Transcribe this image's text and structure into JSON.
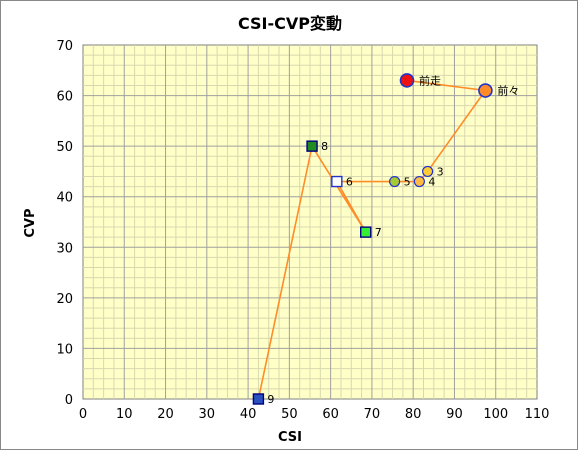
{
  "chart_data": {
    "type": "scatter",
    "title": "CSI-CVP変動",
    "xlabel": "CSI",
    "ylabel": "CVP",
    "xlim": [
      0,
      110
    ],
    "ylim": [
      0,
      70
    ],
    "x_ticks": [
      0,
      10,
      20,
      30,
      40,
      50,
      60,
      70,
      80,
      90,
      100,
      110
    ],
    "y_ticks": [
      0,
      10,
      20,
      30,
      40,
      50,
      60,
      70
    ],
    "grid": true,
    "legend": "none",
    "line_color": "#ff8c28",
    "plot_background": "#ffffc8",
    "points": [
      {
        "label": "9",
        "x": 42.5,
        "y": 0,
        "marker": "square",
        "fill": "#2a52be",
        "stroke": "#000080"
      },
      {
        "label": "8",
        "x": 55.5,
        "y": 50,
        "marker": "square",
        "fill": "#228b22",
        "stroke": "#000080"
      },
      {
        "label": "7",
        "x": 68.5,
        "y": 33,
        "marker": "square",
        "fill": "#33ee33",
        "stroke": "#000080"
      },
      {
        "label": "6",
        "x": 61.5,
        "y": 43,
        "marker": "square",
        "fill": "#ffffff",
        "stroke": "#2233cc"
      },
      {
        "label": "5",
        "x": 75.5,
        "y": 43,
        "marker": "circle",
        "fill": "#a6c832",
        "stroke": "#2233cc"
      },
      {
        "label": "4",
        "x": 81.5,
        "y": 43,
        "marker": "circle",
        "fill": "#ffbb44",
        "stroke": "#2233cc"
      },
      {
        "label": "3",
        "x": 83.5,
        "y": 45,
        "marker": "circle",
        "fill": "#ffcc33",
        "stroke": "#2233cc"
      },
      {
        "label": "前々",
        "x": 97.5,
        "y": 61,
        "marker": "circle-large",
        "fill": "#ff8c28",
        "stroke": "#2233cc"
      },
      {
        "label": "前走",
        "x": 78.5,
        "y": 63,
        "marker": "circle-large",
        "fill": "#ee1111",
        "stroke": "#2233cc"
      }
    ]
  }
}
